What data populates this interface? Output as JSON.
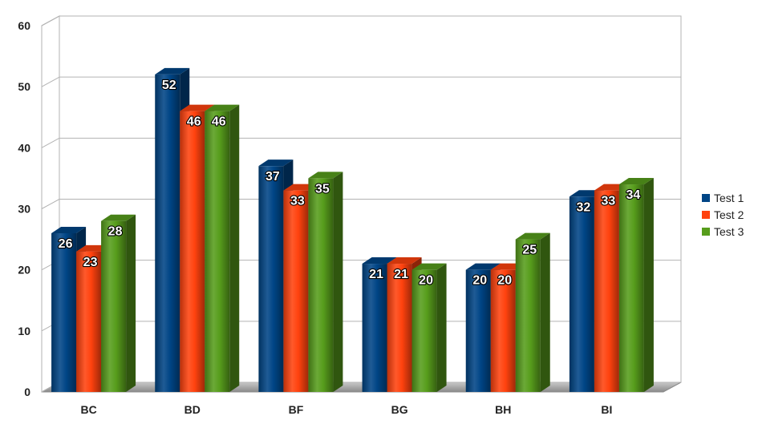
{
  "chart_data": {
    "type": "bar",
    "title": "",
    "xlabel": "",
    "ylabel": "",
    "ylim": [
      0,
      60
    ],
    "yticks": [
      0,
      10,
      20,
      30,
      40,
      50,
      60
    ],
    "grid": true,
    "legend_position": "right",
    "categories": [
      "BC",
      "BD",
      "BF",
      "BG",
      "BH",
      "BI"
    ],
    "series": [
      {
        "name": "Test 1",
        "color": "#004586",
        "values": [
          26,
          52,
          37,
          21,
          20,
          32
        ]
      },
      {
        "name": "Test 2",
        "color": "#ff420e",
        "values": [
          23,
          46,
          33,
          21,
          20,
          33
        ]
      },
      {
        "name": "Test 3",
        "color": "#579d1c",
        "values": [
          28,
          46,
          35,
          20,
          25,
          34
        ]
      }
    ]
  }
}
